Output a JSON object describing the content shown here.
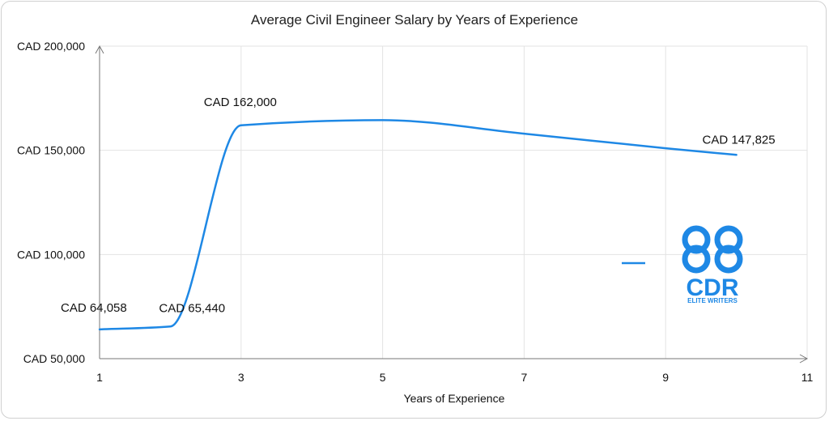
{
  "chart_data": {
    "type": "line",
    "title": "Average Civil Engineer Salary by Years of Experience",
    "xlabel": "Years of Experience",
    "ylabel": "",
    "xlim": [
      1,
      11
    ],
    "ylim": [
      50000,
      200000
    ],
    "x_ticks": [
      1,
      3,
      5,
      7,
      9,
      11
    ],
    "y_ticks": [
      50000,
      100000,
      150000,
      200000
    ],
    "y_tick_labels": [
      "CAD 50,000",
      "CAD 100,000",
      "CAD 150,000",
      "CAD 200,000"
    ],
    "grid": "vertical",
    "series": [
      {
        "color": "#1e88e5",
        "smooth": true,
        "points": [
          {
            "x": 1,
            "y": 64058,
            "label": "CAD 64,058"
          },
          {
            "x": 2,
            "y": 65440,
            "label": "CAD 65,440"
          },
          {
            "x": 3,
            "y": 162000,
            "label": "CAD 162,000"
          },
          {
            "x": 5,
            "y": 164500,
            "label": ""
          },
          {
            "x": 7,
            "y": 158000,
            "label": ""
          },
          {
            "x": 9,
            "y": 151000,
            "label": ""
          },
          {
            "x": 10,
            "y": 147825,
            "label": "CAD 147,825"
          }
        ]
      }
    ]
  },
  "logo": {
    "text": "CDR",
    "subtext": "ELITE WRITERS",
    "color": "#1e88e5"
  }
}
